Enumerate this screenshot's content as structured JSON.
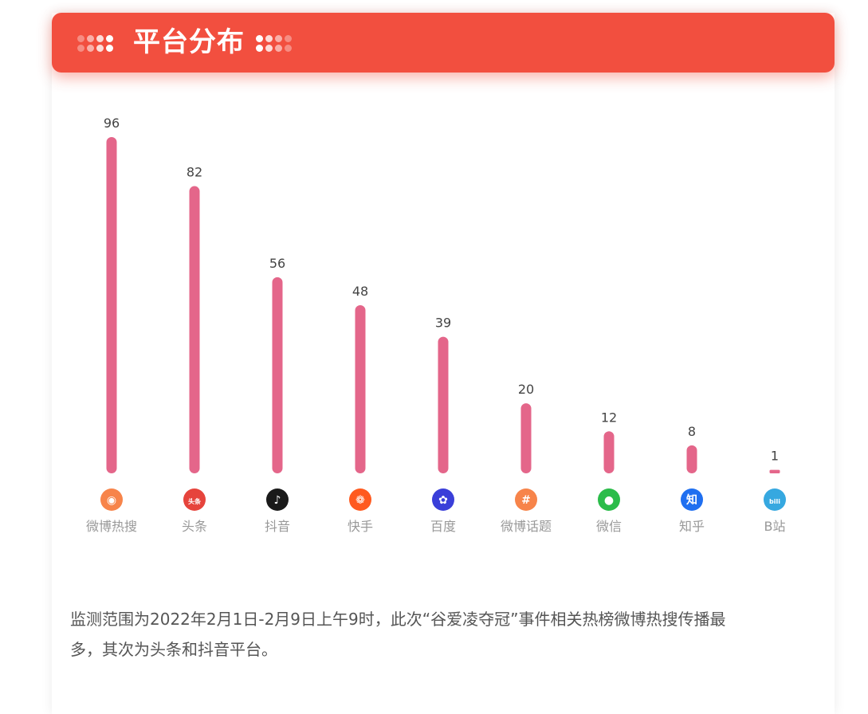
{
  "header": {
    "title": "平台分布"
  },
  "colors": {
    "header_bg": "#f24f3f",
    "bar": "#e4668a",
    "value_label": "#444444",
    "category_label": "#999999"
  },
  "chart_data": {
    "type": "bar",
    "categories": [
      "微博热搜",
      "头条",
      "抖音",
      "快手",
      "百度",
      "微博话题",
      "微信",
      "知乎",
      "B站"
    ],
    "values": [
      96,
      82,
      56,
      48,
      39,
      20,
      12,
      8,
      1
    ],
    "title": "",
    "xlabel": "",
    "ylabel": "",
    "ylim": [
      0,
      96
    ],
    "grid": false,
    "icons": [
      {
        "name": "weibo-icon",
        "color": "#f7844a",
        "glyph": "◉"
      },
      {
        "name": "toutiao-icon",
        "color": "#e6443c",
        "glyph": "头条"
      },
      {
        "name": "douyin-icon",
        "color": "#1a1a1a",
        "glyph": "♪"
      },
      {
        "name": "kuaishou-icon",
        "color": "#ff5a1f",
        "glyph": "❁"
      },
      {
        "name": "baidu-icon",
        "color": "#3a3fd9",
        "glyph": "✿"
      },
      {
        "name": "weibo-topic-icon",
        "color": "#f7844a",
        "glyph": "#"
      },
      {
        "name": "wechat-icon",
        "color": "#2bbc4a",
        "glyph": "●"
      },
      {
        "name": "zhihu-icon",
        "color": "#1f6ff0",
        "glyph": "知"
      },
      {
        "name": "bilibili-icon",
        "color": "#36a8e0",
        "glyph": "bili"
      }
    ]
  },
  "summary": {
    "line1": "监测范围为2022年2月1日-2月9日上午9时，此次“谷爱凌夺冠”事件相关热榜微博热搜传播最",
    "line2": "多，其次为头条和抖音平台。"
  }
}
